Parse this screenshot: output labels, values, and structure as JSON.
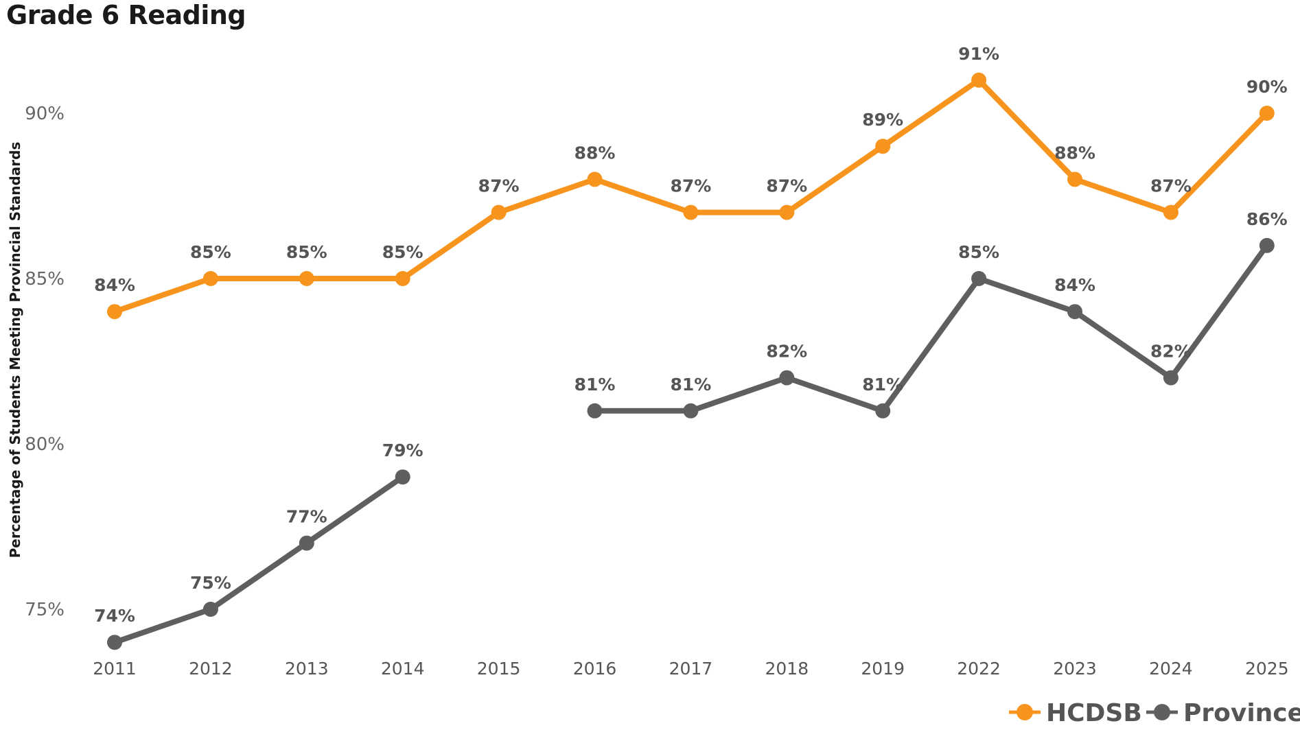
{
  "chart_data": {
    "type": "line",
    "title": "Grade 6 Reading",
    "xlabel": "",
    "ylabel": "Percentage of Students Meeting Provincial Standards",
    "categories": [
      "2011",
      "2012",
      "2013",
      "2014",
      "2015",
      "2016",
      "2017",
      "2018",
      "2019",
      "2022",
      "2023",
      "2024",
      "2025"
    ],
    "ylim": [
      73.5,
      92.5
    ],
    "yticks": [
      75,
      80,
      85,
      90
    ],
    "ytick_labels": [
      "75%",
      "80%",
      "85%",
      "90%"
    ],
    "grid": false,
    "legend_position": "bottom-right",
    "series": [
      {
        "name": "HCDSB",
        "color": "#F7941D",
        "values": [
          84,
          85,
          85,
          85,
          87,
          88,
          87,
          87,
          89,
          91,
          88,
          87,
          90
        ],
        "labels": [
          "84%",
          "85%",
          "85%",
          "85%",
          "87%",
          "88%",
          "87%",
          "87%",
          "89%",
          "91%",
          "88%",
          "87%",
          "90%"
        ]
      },
      {
        "name": "Province",
        "color": "#5F5F5F",
        "values": [
          74,
          75,
          77,
          79,
          null,
          81,
          81,
          82,
          81,
          85,
          84,
          82,
          86
        ],
        "labels": [
          "74%",
          "75%",
          "77%",
          "79%",
          null,
          "81%",
          "81%",
          "82%",
          "81%",
          "85%",
          "84%",
          "82%",
          "86%"
        ]
      }
    ]
  }
}
